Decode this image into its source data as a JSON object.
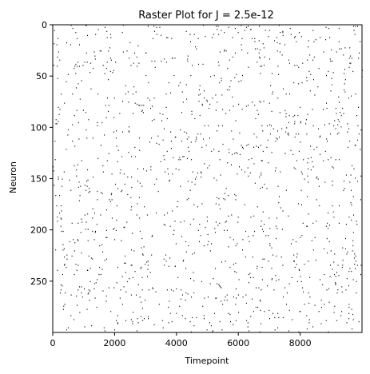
{
  "chart_data": {
    "type": "scatter",
    "subtype": "raster",
    "title": "Raster Plot for J = 2.5e-12",
    "xlabel": "Timepoint",
    "ylabel": "Neuron",
    "xlim": [
      0,
      10000
    ],
    "ylim": [
      300,
      0
    ],
    "xticks": [
      0,
      2000,
      4000,
      6000,
      8000
    ],
    "yticks": [
      0,
      50,
      100,
      150,
      200,
      250
    ],
    "n_neurons": 300,
    "n_timepoints": 10000,
    "spike_color": "#000000",
    "background_color": "#ffffff",
    "spike_count_approx": 1400,
    "spikes_note": "individual spike events are too dense to read; pattern approximated as sparse random spikes across all neurons"
  }
}
